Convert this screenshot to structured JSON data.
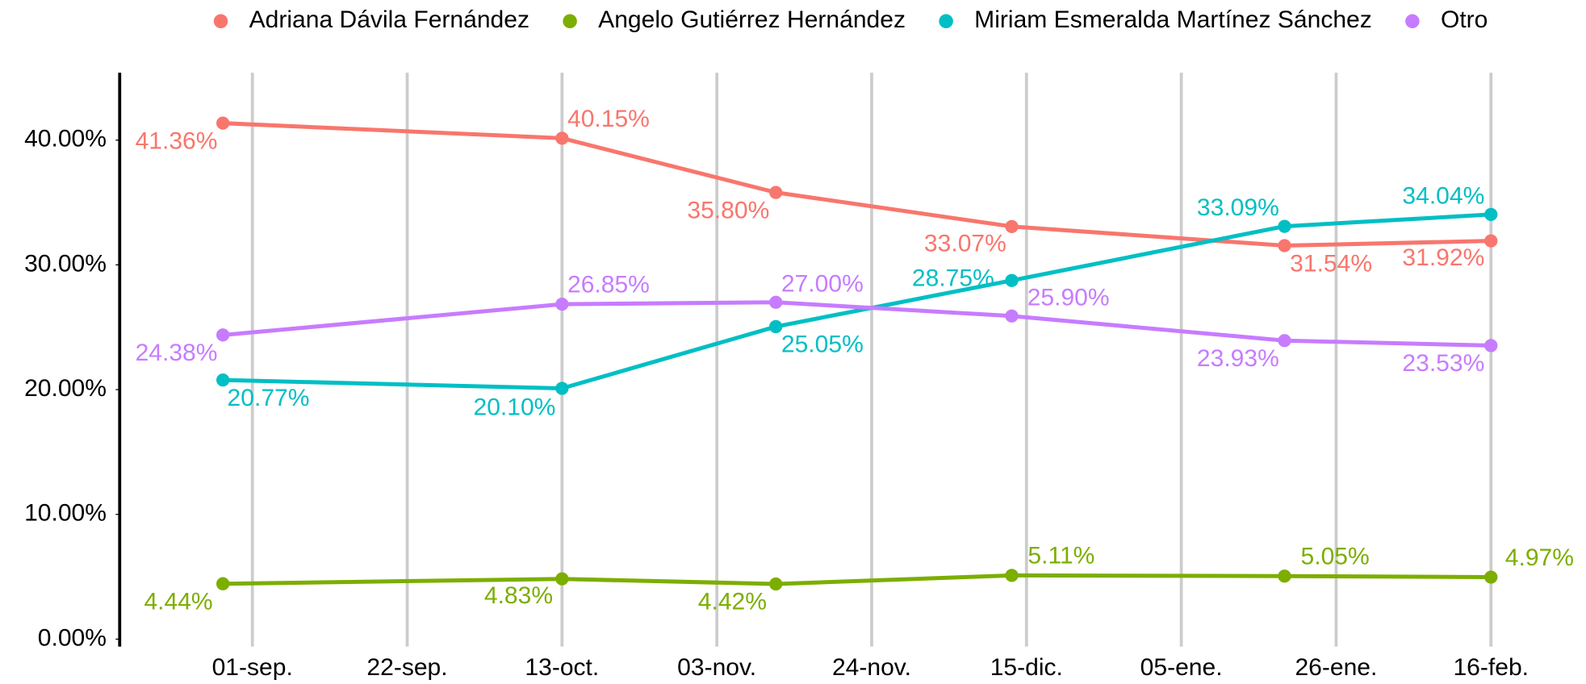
{
  "chart_data": {
    "type": "line",
    "x": [
      "08-28",
      "10-13",
      "11-11",
      "12-13",
      "01-19",
      "02-16"
    ],
    "xlim": [
      "08-14",
      "02-25"
    ],
    "xticks": [
      {
        "value": "09-01",
        "label": "01-sep."
      },
      {
        "value": "09-22",
        "label": "22-sep."
      },
      {
        "value": "10-13",
        "label": "13-oct."
      },
      {
        "value": "11-03",
        "label": "03-nov."
      },
      {
        "value": "11-24",
        "label": "24-nov."
      },
      {
        "value": "12-15",
        "label": "15-dic."
      },
      {
        "value": "01-05",
        "label": "05-ene."
      },
      {
        "value": "01-26",
        "label": "26-ene."
      },
      {
        "value": "02-16",
        "label": "16-feb."
      }
    ],
    "ylim": [
      -0.6,
      45.4
    ],
    "yticks": [
      {
        "value": 0,
        "label": "0.00%"
      },
      {
        "value": 10,
        "label": "10.00%"
      },
      {
        "value": 20,
        "label": "20.00%"
      },
      {
        "value": 30,
        "label": "30.00%"
      },
      {
        "value": 40,
        "label": "40.00%"
      }
    ],
    "grid": true,
    "legend": "top",
    "series": [
      {
        "name": "Adriana Dávila Fernández",
        "color": "#F8766D",
        "values": [
          41.36,
          40.15,
          35.8,
          33.07,
          31.54,
          31.92
        ],
        "value_labels": [
          "41.36%",
          "40.15%",
          "35.80%",
          "33.07%",
          "31.54%",
          "31.92%"
        ]
      },
      {
        "name": "Angelo Gutiérrez Hernández",
        "color": "#7CAE00",
        "values": [
          4.44,
          4.83,
          4.42,
          5.11,
          5.05,
          4.97
        ],
        "value_labels": [
          "4.44%",
          "4.83%",
          "4.42%",
          "5.11%",
          "5.05%",
          "4.97%"
        ]
      },
      {
        "name": "Miriam Esmeralda Martínez Sánchez",
        "color": "#00BFC4",
        "values": [
          20.77,
          20.1,
          25.05,
          28.75,
          33.09,
          34.04
        ],
        "value_labels": [
          "20.77%",
          "20.10%",
          "25.05%",
          "28.75%",
          "33.09%",
          "34.04%"
        ]
      },
      {
        "name": "Otro",
        "color": "#C77CFF",
        "values": [
          24.38,
          26.85,
          27.0,
          25.9,
          23.93,
          23.53
        ],
        "value_labels": [
          "24.38%",
          "26.85%",
          "27.00%",
          "25.90%",
          "23.93%",
          "23.53%"
        ]
      }
    ]
  }
}
